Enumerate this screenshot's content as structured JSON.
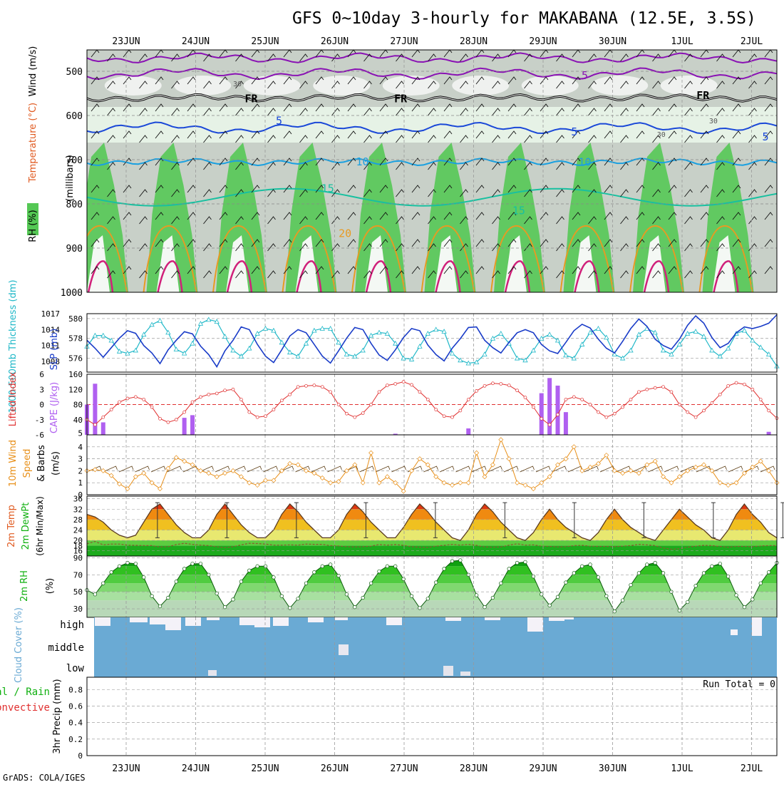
{
  "title": "GFS 0~10day 3-hourly for MAKABANA (12.5E, 3.5S)",
  "footer": "GrADS: COLA/IGES",
  "dates": [
    "23JUN",
    "24JUN",
    "25JUN",
    "26JUN",
    "27JUN",
    "28JUN",
    "29JUN",
    "30JUN",
    "1JUL",
    "2JUL"
  ],
  "colors": {
    "rh_green": "#55c855",
    "rh_light": "#e6f2e6",
    "rh_grey": "#c8d0c8",
    "purple": "#8a12b4",
    "blue_dark": "#1a48d8",
    "cyan": "#1aa0e0",
    "teal": "#18c0a0",
    "orange": "#e89a22",
    "red_orange": "#e05a20",
    "magenta": "#d0207a",
    "slp": "#1a3cc8",
    "thickness": "#20b8c8",
    "li": "#e03030",
    "cape": "#b060f0",
    "wind10": "#e8901a",
    "rh2m": "#10b010",
    "cloud": "#6aaad4",
    "precip_grid": "#909090"
  },
  "chart_data": [
    {
      "type": "contour",
      "panel": "upper-air",
      "ylabel_parts": [
        "RH (%)",
        "Temperature (°C)",
        "Wind (m/s)"
      ],
      "yunit": "(millibars)",
      "y_ticks": [
        500,
        600,
        700,
        800,
        900,
        1000
      ],
      "ylim": [
        455,
        1000
      ],
      "contour_labels": [
        {
          "text": "5",
          "day": 6.6,
          "p": 510
        },
        {
          "text": "FR",
          "day": 1.8,
          "p": 562
        },
        {
          "text": "FR",
          "day": 3.95,
          "p": 562
        },
        {
          "text": "FR",
          "day": 8.3,
          "p": 555
        },
        {
          "text": "5",
          "day": 2.2,
          "p": 612
        },
        {
          "text": "5",
          "day": 6.45,
          "p": 637
        },
        {
          "text": "5",
          "day": 9.2,
          "p": 648
        },
        {
          "text": "10",
          "day": 3.4,
          "p": 705
        },
        {
          "text": "10",
          "day": 6.6,
          "p": 706
        },
        {
          "text": "15",
          "day": 2.9,
          "p": 765
        },
        {
          "text": "15",
          "day": 5.65,
          "p": 815
        },
        {
          "text": "20",
          "day": 3.15,
          "p": 867
        },
        {
          "text": "30",
          "day": 1.6,
          "p": 526
        },
        {
          "text": "30",
          "day": 7.7,
          "p": 640
        },
        {
          "text": "30",
          "day": 8.45,
          "p": 610
        }
      ]
    },
    {
      "type": "line",
      "panel": "slp-thickness",
      "left_label": "1000-500mb Thickness (dm)",
      "right_label": "SLP (mb)",
      "left_ticks": [
        576,
        578,
        580
      ],
      "right_ticks": [
        1008,
        1011,
        1014,
        1017
      ],
      "series": [
        {
          "name": "Thickness",
          "values": [
            577.2,
            578.3,
            578.3,
            577.8,
            576.7,
            576.5,
            576.8,
            578.4,
            579.4,
            579.8,
            578.6,
            576.9,
            576.5,
            577.5,
            579.5,
            579.9,
            579.7,
            578.2,
            576.8,
            576.2,
            577.0,
            578.5,
            579.0,
            578.8,
            577.6,
            576.6,
            576.2,
            577.5,
            578.8,
            579.0,
            579.0,
            577.6,
            576.4,
            576.2,
            576.8,
            578.3,
            578.6,
            578.5,
            577.5,
            576.0,
            575.9,
            577.2,
            578.5,
            578.9,
            578.7,
            576.5,
            575.8,
            575.5,
            575.6,
            576.4,
            578.0,
            578.5,
            577.5,
            576.0,
            575.8,
            576.8,
            578.0,
            578.4,
            577.8,
            576.3,
            576.0,
            577.4,
            578.6,
            579.0,
            578.1,
            576.4,
            576.0,
            576.8,
            578.4,
            579.0,
            578.6,
            576.8,
            576.4,
            577.4,
            578.5,
            578.7,
            578.2,
            576.8,
            576.2,
            577.0,
            578.5,
            578.8,
            577.8,
            577.1,
            576.4,
            575.2
          ]
        },
        {
          "name": "SLP",
          "values": [
            1012.0,
            1010.5,
            1008.8,
            1010.6,
            1012.4,
            1013.8,
            1013.3,
            1011.0,
            1009.6,
            1007.6,
            1010.2,
            1012.0,
            1013.6,
            1013.2,
            1010.9,
            1009.3,
            1007.0,
            1010.0,
            1012.0,
            1014.5,
            1014.0,
            1011.2,
            1009.0,
            1007.8,
            1010.2,
            1012.8,
            1014.0,
            1013.4,
            1011.2,
            1009.0,
            1007.7,
            1010.0,
            1012.4,
            1014.4,
            1014.0,
            1011.4,
            1009.2,
            1008.2,
            1010.2,
            1012.5,
            1014.2,
            1013.8,
            1011.1,
            1009.3,
            1008.1,
            1010.5,
            1012.3,
            1014.4,
            1014.5,
            1012.0,
            1010.6,
            1009.6,
            1011.6,
            1013.4,
            1014.0,
            1013.4,
            1011.2,
            1010.0,
            1009.5,
            1011.6,
            1013.8,
            1015.0,
            1014.3,
            1012.2,
            1010.5,
            1009.6,
            1011.8,
            1014.2,
            1016.0,
            1014.6,
            1012.2,
            1011.0,
            1010.3,
            1012.2,
            1014.8,
            1016.6,
            1015.2,
            1012.5,
            1010.6,
            1011.4,
            1013.4,
            1014.5,
            1014.2,
            1014.6,
            1015.2,
            1016.8
          ]
        }
      ]
    },
    {
      "type": "line+bar",
      "panel": "lifted-index-cape",
      "left_label": "Lifted Index",
      "right_label": "CAPE (J/kg)",
      "left_ticks": [
        "6",
        "3",
        "0",
        "-3",
        "-6"
      ],
      "right_ticks": [
        5,
        40,
        80,
        120,
        160
      ],
      "series": [
        {
          "name": "Lifted Index",
          "values": [
            -1.0,
            -2.0,
            -0.5,
            1.0,
            2.5,
            3.2,
            3.5,
            3.0,
            1.5,
            -0.8,
            -1.5,
            -1.0,
            0.5,
            2.5,
            3.5,
            4.0,
            4.2,
            4.8,
            5.0,
            3.0,
            0.5,
            -0.5,
            -0.3,
            1.0,
            2.8,
            4.0,
            5.5,
            5.7,
            5.8,
            5.5,
            4.5,
            2.0,
            0.2,
            -0.5,
            0.3,
            2.0,
            4.5,
            5.8,
            6.1,
            6.5,
            5.9,
            4.5,
            3.0,
            1.0,
            -0.3,
            -0.5,
            0.8,
            3.0,
            4.7,
            5.7,
            6.2,
            6.1,
            5.8,
            4.8,
            3.4,
            1.5,
            -0.8,
            -2.0,
            0.0,
            3.0,
            3.5,
            3.0,
            2.0,
            0.5,
            -0.5,
            0.2,
            1.5,
            3.0,
            4.5,
            5.0,
            5.3,
            5.5,
            4.5,
            2.0,
            0.5,
            -0.5,
            0.8,
            2.3,
            4.0,
            5.7,
            6.3,
            6.0,
            5.0,
            3.0,
            0.8,
            -0.7
          ]
        },
        {
          "name": "CAPE",
          "values": [
            80,
            135,
            33,
            0,
            0,
            0,
            0,
            0,
            0,
            0,
            0,
            0,
            0,
            0,
            0,
            0,
            0,
            0,
            0,
            0,
            0,
            0,
            0,
            0,
            0,
            0,
            0,
            0,
            0,
            0,
            0,
            0,
            0,
            0,
            0,
            0,
            0,
            0,
            0,
            0,
            0,
            0,
            0,
            0,
            0,
            0,
            0,
            0,
            0,
            0,
            0,
            0,
            0,
            0,
            0,
            0,
            0,
            0,
            0,
            0,
            0,
            0,
            0,
            0,
            0,
            0,
            0,
            0,
            0,
            0,
            0,
            0,
            0,
            0,
            0,
            0,
            0,
            0,
            0,
            0,
            0,
            0,
            0,
            0,
            0,
            0
          ]
        }
      ]
    },
    {
      "type": "line",
      "panel": "10m-wind",
      "ylabel_parts": [
        "10m Wind",
        "Speed",
        "& Barbs",
        "(m/s)"
      ],
      "y_ticks": [
        0,
        1,
        2,
        3,
        4
      ],
      "series": [
        {
          "name": "10m Wind Speed",
          "values": [
            2.0,
            2.1,
            2.0,
            1.6,
            0.9,
            0.5,
            1.5,
            1.8,
            1.0,
            0.5,
            2.2,
            3.1,
            2.8,
            2.5,
            2.0,
            1.8,
            1.5,
            1.8,
            2.0,
            1.5,
            1.0,
            0.8,
            1.2,
            1.2,
            2.0,
            2.6,
            2.5,
            2.0,
            1.8,
            1.4,
            1.0,
            1.1,
            2.0,
            2.5,
            1.0,
            3.5,
            1.0,
            1.5,
            1.0,
            0.3,
            2.0,
            3.0,
            2.5,
            1.5,
            1.0,
            0.8,
            1.0,
            1.0,
            3.5,
            1.5,
            2.5,
            4.6,
            3.0,
            1.0,
            0.8,
            0.5,
            1.0,
            1.5,
            2.5,
            3.0,
            4.0,
            2.0,
            2.3,
            2.6,
            3.3,
            2.0,
            1.8,
            2.0,
            1.8,
            2.5,
            2.8,
            1.5,
            1.0,
            1.5,
            2.0,
            2.3,
            2.5,
            2.0,
            1.0,
            0.8,
            1.0,
            1.8,
            2.3,
            2.8,
            2.0,
            1.0
          ]
        }
      ]
    },
    {
      "type": "area",
      "panel": "2m-temp",
      "ylabel_parts": [
        "2m Temp",
        "2m DewPt",
        "(6hr Min/Max)"
      ],
      "y_ticks": [
        16,
        20,
        24,
        28,
        32,
        36
      ],
      "extra_ticks": [
        18
      ],
      "series": [
        {
          "name": "2m Temp",
          "values": [
            30,
            29,
            27,
            24,
            22,
            21,
            22,
            27,
            32,
            34,
            30,
            26,
            23,
            21,
            21,
            24,
            30,
            34,
            30,
            26,
            23,
            21,
            21,
            24,
            30,
            34,
            31,
            27,
            24,
            21,
            21,
            24,
            30,
            34,
            31,
            27,
            24,
            21,
            21,
            25,
            30,
            34,
            31,
            27,
            24,
            21,
            20,
            24,
            30,
            34,
            31,
            27,
            24,
            21,
            20,
            23,
            28,
            32,
            28,
            25,
            23,
            21,
            20,
            23,
            28,
            32,
            28,
            25,
            23,
            21,
            20,
            24,
            28,
            32,
            29,
            26,
            24,
            21,
            20,
            24,
            30,
            34,
            30,
            27,
            23,
            21
          ]
        },
        {
          "name": "2m DewPt",
          "values": [
            18.7,
            19.6,
            18.3,
            18.6,
            18.6,
            18.2,
            18.1,
            18.0,
            18.0,
            17.5,
            17.6,
            18.4,
            18.9,
            18.5,
            18.2,
            18.0,
            17.6,
            17.2,
            17.6,
            18.3,
            18.9,
            18.8,
            18.6,
            18.2,
            18.2,
            18.3,
            18.2,
            18.6,
            18.5,
            18.5,
            18.0,
            17.9,
            17.6,
            17.5,
            17.6,
            17.8,
            18.4,
            18.2,
            18.4,
            18.1,
            17.6,
            17.4,
            17.3,
            17.8,
            18.1,
            18.5,
            18.2,
            18.5,
            18.1,
            17.5,
            17.4,
            17.5,
            18.2,
            18.7,
            18.2,
            18.3,
            17.8,
            17.7,
            17.5,
            17.6,
            18.0,
            18.1,
            17.8,
            17.7,
            17.7,
            17.6,
            17.8,
            18.0,
            18.5,
            18.3,
            18.0,
            17.1,
            16.6,
            16.8,
            17.4,
            17.8,
            18.1,
            18.0,
            17.7,
            17.4,
            17.7,
            17.7,
            17.6,
            17.9,
            18.0,
            18.0
          ]
        }
      ]
    },
    {
      "type": "area",
      "panel": "2m-rh",
      "ylabel_parts": [
        "2m RH",
        "(%)"
      ],
      "y_ticks": [
        30,
        50,
        70,
        90
      ],
      "series": [
        {
          "name": "2m RH",
          "values": [
            52,
            47,
            60,
            73,
            80,
            84,
            83,
            67,
            45,
            33,
            43,
            62,
            77,
            83,
            83,
            70,
            48,
            32,
            41,
            62,
            75,
            80,
            80,
            67,
            45,
            31,
            42,
            60,
            73,
            80,
            82,
            69,
            47,
            32,
            43,
            60,
            74,
            80,
            80,
            65,
            45,
            31,
            42,
            61,
            77,
            86,
            87,
            70,
            46,
            32,
            43,
            60,
            77,
            84,
            85,
            68,
            47,
            34,
            44,
            61,
            72,
            80,
            82,
            67,
            45,
            27,
            40,
            58,
            72,
            82,
            84,
            72,
            50,
            28,
            38,
            57,
            72,
            80,
            83,
            68,
            46,
            32,
            41,
            60,
            73,
            84
          ]
        }
      ]
    },
    {
      "type": "bar",
      "panel": "cloud-cover",
      "ylabel": "Cloud Cover (%)",
      "categories": [
        "high",
        "middle",
        "low"
      ]
    },
    {
      "type": "bar",
      "panel": "precip",
      "ylabel": "3hr Precip (mm)",
      "left_caption": [
        "Total / Rain",
        "Convective"
      ],
      "y_ticks": [
        "0",
        "0.2",
        "0.4",
        "0.6",
        "0.8"
      ],
      "run_total": "Run Total = 0",
      "values": []
    }
  ]
}
